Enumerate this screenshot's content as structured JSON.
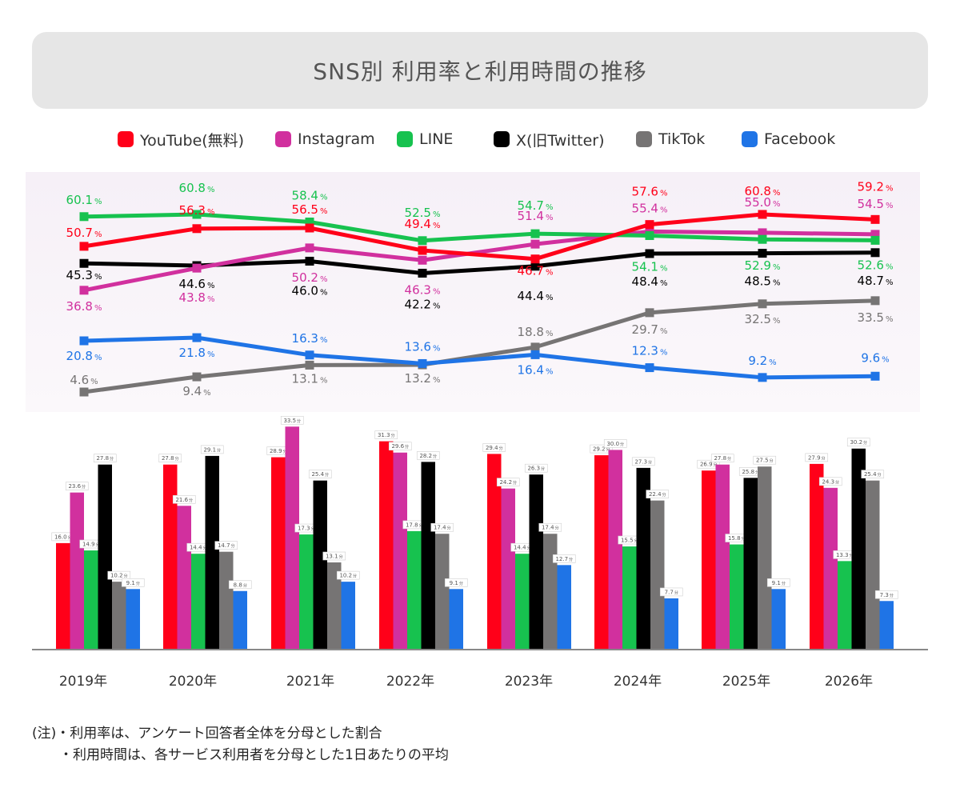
{
  "header": {
    "title": "SNS別 利用率と利用時間の推移"
  },
  "legend": [
    {
      "label": "YouTube(無料)",
      "color": "#ff0019"
    },
    {
      "label": "Instagram",
      "color": "#d1309e"
    },
    {
      "label": "LINE",
      "color": "#17c24f"
    },
    {
      "label": "X(旧Twitter)",
      "color": "#000000"
    },
    {
      "label": "TikTok",
      "color": "#767474"
    },
    {
      "label": "Facebook",
      "color": "#1f74e6"
    }
  ],
  "chart_data": [
    {
      "type": "line",
      "categories": [
        "2019年",
        "2020年",
        "2021年",
        "2022年",
        "2023年",
        "2024年",
        "2025年",
        "2026年"
      ],
      "unit": "%",
      "series": [
        {
          "name": "YouTube(無料)",
          "color": "#ff0019",
          "values": [
            50.7,
            56.3,
            56.5,
            49.4,
            46.7,
            57.6,
            60.8,
            59.2
          ],
          "labels": [
            "50.7",
            "56.3",
            "56.5",
            "49.4",
            "46.7",
            "57.6",
            "60.8",
            "59.2"
          ]
        },
        {
          "name": "Instagram",
          "color": "#d1309e",
          "values": [
            36.8,
            43.8,
            50.2,
            46.3,
            51.4,
            55.4,
            55.0,
            54.5
          ],
          "labels": [
            "36.8",
            "43.8",
            "50.2",
            "46.3",
            "51.4",
            "55.4",
            "55.0",
            "54.5"
          ]
        },
        {
          "name": "LINE",
          "color": "#17c24f",
          "values": [
            60.1,
            60.8,
            58.4,
            52.5,
            54.7,
            54.1,
            52.9,
            52.6
          ],
          "labels": [
            "60.1",
            "60.8",
            "58.4",
            "52.5",
            "54.7",
            "54.1",
            "52.9",
            "52.6"
          ]
        },
        {
          "name": "X(旧Twitter)",
          "color": "#000000",
          "values": [
            45.3,
            44.6,
            46.0,
            42.2,
            44.4,
            48.4,
            48.5,
            48.7
          ],
          "labels": [
            "45.3",
            "44.6",
            "46.0",
            "42.2",
            "44.4",
            "48.4",
            "48.5",
            "48.7"
          ]
        },
        {
          "name": "TikTok",
          "color": "#767474",
          "values": [
            4.6,
            9.4,
            13.1,
            13.2,
            18.8,
            29.7,
            32.5,
            33.5
          ],
          "labels": [
            "4.6",
            "9.4",
            "13.1",
            "13.2",
            "18.8",
            "29.7",
            "32.5",
            "33.5"
          ]
        },
        {
          "name": "Facebook",
          "color": "#1f74e6",
          "values": [
            20.8,
            21.8,
            16.3,
            13.6,
            16.4,
            12.3,
            9.2,
            9.6
          ],
          "labels": [
            "20.8",
            "21.8",
            "16.3",
            "13.6",
            "16.4",
            "12.3",
            "9.2",
            "9.6"
          ]
        }
      ]
    },
    {
      "type": "bar",
      "categories": [
        "2019年",
        "2020年",
        "2021年",
        "2022年",
        "2023年",
        "2024年",
        "2025年",
        "2026年"
      ],
      "unit": "分",
      "series": [
        {
          "name": "YouTube(無料)",
          "color": "#ff0019",
          "values": [
            16.0,
            27.8,
            28.9,
            31.3,
            29.4,
            29.2,
            26.9,
            27.9
          ],
          "labels": [
            "16.0",
            "27.8",
            "28.9",
            "31.3",
            "29.4",
            "29.2",
            "26.9",
            "27.9"
          ]
        },
        {
          "name": "Instagram",
          "color": "#d1309e",
          "values": [
            23.6,
            21.6,
            33.5,
            29.6,
            24.2,
            30.0,
            27.8,
            24.3
          ],
          "labels": [
            "23.6",
            "21.6",
            "33.5",
            "29.6",
            "24.2",
            "30.0",
            "27.8",
            "24.3"
          ]
        },
        {
          "name": "LINE",
          "color": "#17c24f",
          "values": [
            14.9,
            14.4,
            17.3,
            17.8,
            14.4,
            15.5,
            15.8,
            13.3
          ],
          "labels": [
            "14.9",
            "14.4",
            "17.3",
            "17.8",
            "14.4",
            "15.5",
            "15.8",
            "13.3"
          ]
        },
        {
          "name": "X(旧Twitter)",
          "color": "#000000",
          "values": [
            27.8,
            29.1,
            25.4,
            28.2,
            26.3,
            27.3,
            25.8,
            30.2
          ],
          "labels": [
            "27.8",
            "29.1",
            "25.4",
            "28.2",
            "26.3",
            "27.3",
            "25.8",
            "30.2"
          ]
        },
        {
          "name": "TikTok",
          "color": "#767474",
          "values": [
            10.2,
            14.7,
            13.1,
            17.4,
            17.4,
            22.4,
            27.5,
            25.4
          ],
          "labels": [
            "10.2",
            "14.7",
            "13.1",
            "17.4",
            "17.4",
            "22.4",
            "27.5",
            "25.4"
          ]
        },
        {
          "name": "Facebook",
          "color": "#1f74e6",
          "values": [
            9.1,
            8.8,
            10.2,
            9.1,
            12.7,
            7.7,
            9.1,
            7.3
          ],
          "labels": [
            "9.1",
            "8.8",
            "10.2",
            "9.1",
            "12.7",
            "7.7",
            "9.1",
            "7.3"
          ]
        }
      ]
    }
  ],
  "notes": [
    "(注)・利用率は、アンケート回答者全体を分母とした割合",
    "　　・利用時間は、各サービス利用者を分母とした1日あたりの平均"
  ]
}
